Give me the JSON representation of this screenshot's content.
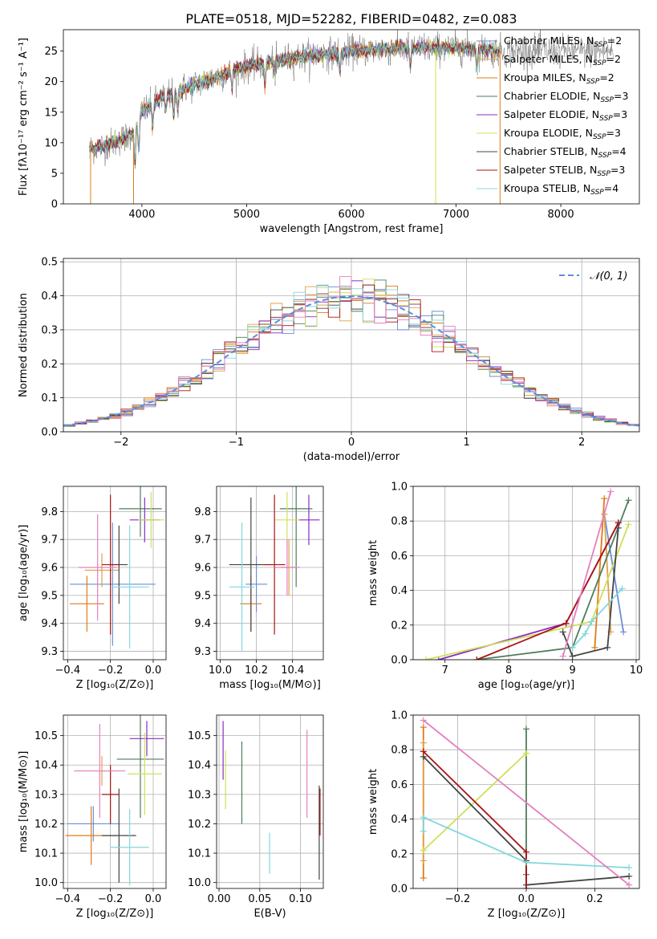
{
  "figure_title": "PLATE=0518, MJD=52282, FIBERID=0482, z=0.083",
  "colors": {
    "Chabrier MILES": "#6b8fd6",
    "Salpeter MILES": "#e0a04a",
    "Kroupa MILES": "#e07a18",
    "Chabrier ELODIE": "#4e7d5a",
    "Salpeter ELODIE": "#8a2cc0",
    "Kroupa ELODIE": "#d0df59",
    "Chabrier STELIB": "#444444",
    "Salpeter STELIB": "#a81414",
    "Kroupa STELIB": "#80d8de",
    "pink": "#e57fbf",
    "normal": "#5b8ee0"
  },
  "chart_data": [
    {
      "id": "spectrum",
      "type": "line",
      "title": "PLATE=0518, MJD=52282, FIBERID=0482, z=0.083",
      "xlabel": "wavelength [Angstrom, rest frame]",
      "ylabel": "Flux [fλ10⁻¹⁷ erg cm⁻² s⁻¹ A⁻¹]",
      "xlim": [
        3250,
        8750
      ],
      "ylim": [
        0,
        28.5
      ],
      "xticks": [
        4000,
        5000,
        6000,
        7000,
        8000
      ],
      "yticks": [
        0,
        5,
        10,
        15,
        20,
        25
      ],
      "grid": false,
      "legend_position": "upper right",
      "legend": [
        {
          "label": "Chabrier MILES, N",
          "sub": "SSP",
          "suffix": "=2"
        },
        {
          "label": "Salpeter MILES, N",
          "sub": "SSP",
          "suffix": "=2"
        },
        {
          "label": "Kroupa MILES, N",
          "sub": "SSP",
          "suffix": "=2"
        },
        {
          "label": "Chabrier ELODIE, N",
          "sub": "SSP",
          "suffix": "=3"
        },
        {
          "label": "Salpeter ELODIE, N",
          "sub": "SSP",
          "suffix": "=3"
        },
        {
          "label": "Kroupa ELODIE, N",
          "sub": "SSP",
          "suffix": "=3"
        },
        {
          "label": "Chabrier STELIB, N",
          "sub": "SSP",
          "suffix": "=4"
        },
        {
          "label": "Salpeter STELIB, N",
          "sub": "SSP",
          "suffix": "=3"
        },
        {
          "label": "Kroupa STELIB, N",
          "sub": "SSP",
          "suffix": "=4"
        }
      ],
      "continuum": [
        [
          3500,
          9.0
        ],
        [
          3700,
          9.8
        ],
        [
          3800,
          10.5
        ],
        [
          3900,
          11.5
        ],
        [
          4000,
          15.0
        ],
        [
          4200,
          17.5
        ],
        [
          4500,
          19.5
        ],
        [
          5000,
          22.5
        ],
        [
          5500,
          24.0
        ],
        [
          6000,
          25.0
        ],
        [
          6500,
          25.5
        ],
        [
          7000,
          25.5
        ],
        [
          7300,
          25.2
        ],
        [
          7400,
          25.0
        ]
      ],
      "absorption_lines": [
        [
          3934,
          6.0
        ],
        [
          3969,
          5.0
        ],
        [
          4102,
          3.5
        ],
        [
          4227,
          2.5
        ],
        [
          4304,
          4.0
        ],
        [
          4340,
          3.0
        ],
        [
          4861,
          3.0
        ],
        [
          5175,
          3.5
        ],
        [
          5270,
          2.0
        ],
        [
          5890,
          3.0
        ],
        [
          6563,
          3.0
        ],
        [
          7200,
          3.0
        ]
      ],
      "model_range": [
        3500,
        7420
      ],
      "data_range": [
        3500,
        8500
      ]
    },
    {
      "id": "residuals",
      "type": "line",
      "xlabel": "(data-model)/error",
      "ylabel": "Normed distribution",
      "xlim": [
        -2.5,
        2.5
      ],
      "ylim": [
        0,
        0.51
      ],
      "xticks": [
        -2,
        -1,
        0,
        1,
        2
      ],
      "yticks": [
        0.0,
        0.1,
        0.2,
        0.3,
        0.4,
        0.5
      ],
      "grid": true,
      "legend_position": "upper right",
      "legend": [
        "𝒩(0, 1)"
      ],
      "bin_width": 0.1,
      "normal_curve": {
        "mean": 0,
        "sigma": 1
      }
    },
    {
      "id": "age-vs-Z",
      "type": "scatter",
      "xlabel": "Z [log₁₀(Z/Z⊙)]",
      "ylabel": "age  [log₁₀(age/yr)]",
      "xlim": [
        -0.42,
        0.06
      ],
      "ylim": [
        9.27,
        9.89
      ],
      "xticks": [
        -0.4,
        -0.2,
        0.0
      ],
      "yticks": [
        9.3,
        9.4,
        9.5,
        9.6,
        9.7,
        9.8
      ],
      "grid": true,
      "errorbars": [
        {
          "series": "Chabrier MILES",
          "x": -0.19,
          "xerr": 0.2,
          "y": 9.54,
          "yerr": 0.22
        },
        {
          "series": "Kroupa MILES",
          "x": -0.31,
          "xerr": 0.08,
          "y": 9.47,
          "yerr": 0.1
        },
        {
          "series": "Salpeter MILES",
          "x": -0.24,
          "xerr": 0.08,
          "y": 9.59,
          "yerr": 0.06
        },
        {
          "series": "Chabrier ELODIE",
          "x": -0.06,
          "xerr": 0.1,
          "y": 9.81,
          "yerr": 0.1
        },
        {
          "series": "Salpeter ELODIE",
          "x": -0.04,
          "xerr": 0.07,
          "y": 9.77,
          "yerr": 0.08
        },
        {
          "series": "Kroupa ELODIE",
          "x": -0.01,
          "xerr": 0.06,
          "y": 9.77,
          "yerr": 0.1
        },
        {
          "series": "Chabrier STELIB",
          "x": -0.16,
          "xerr": 0.04,
          "y": 9.61,
          "yerr": 0.14
        },
        {
          "series": "Salpeter STELIB",
          "x": -0.2,
          "xerr": 0.04,
          "y": 9.61,
          "yerr": 0.25
        },
        {
          "series": "Kroupa STELIB",
          "x": -0.11,
          "xerr": 0.09,
          "y": 9.53,
          "yerr": 0.22
        },
        {
          "series": "pink",
          "x": -0.26,
          "xerr": 0.09,
          "y": 9.6,
          "yerr": 0.19
        }
      ]
    },
    {
      "id": "age-vs-mass",
      "type": "scatter",
      "xlabel": "mass [log₁₀(M/M⊙)]",
      "ylabel": "",
      "xlim": [
        9.98,
        10.57
      ],
      "ylim": [
        9.27,
        9.89
      ],
      "xticks": [
        10.0,
        10.2,
        10.4
      ],
      "yticks": [
        9.3,
        9.4,
        9.5,
        9.6,
        9.7,
        9.8
      ],
      "grid": true,
      "errorbars": [
        {
          "series": "Chabrier MILES",
          "x": 10.2,
          "xerr": 0.06,
          "y": 9.54,
          "yerr": 0.1
        },
        {
          "series": "Kroupa MILES",
          "x": 10.17,
          "xerr": 0.06,
          "y": 9.47,
          "yerr": 0.1
        },
        {
          "series": "Salpeter MILES",
          "x": 10.38,
          "xerr": 0.04,
          "y": 9.6,
          "yerr": 0.1
        },
        {
          "series": "Chabrier ELODIE",
          "x": 10.42,
          "xerr": 0.09,
          "y": 9.81,
          "yerr": 0.28
        },
        {
          "series": "Salpeter ELODIE",
          "x": 10.49,
          "xerr": 0.06,
          "y": 9.77,
          "yerr": 0.09
        },
        {
          "series": "Kroupa ELODIE",
          "x": 10.37,
          "xerr": 0.07,
          "y": 9.77,
          "yerr": 0.1
        },
        {
          "series": "Chabrier STELIB",
          "x": 10.17,
          "xerr": 0.12,
          "y": 9.61,
          "yerr": 0.24
        },
        {
          "series": "Salpeter STELIB",
          "x": 10.3,
          "xerr": 0.06,
          "y": 9.61,
          "yerr": 0.25
        },
        {
          "series": "Kroupa STELIB",
          "x": 10.12,
          "xerr": 0.07,
          "y": 9.53,
          "yerr": 0.23
        },
        {
          "series": "pink",
          "x": 10.37,
          "xerr": 0.07,
          "y": 9.6,
          "yerr": 0.1
        }
      ]
    },
    {
      "id": "mass-weight-vs-age",
      "type": "line",
      "xlabel": "age  [log₁₀(age/yr)]",
      "ylabel": "mass weight",
      "xlim": [
        6.5,
        10.05
      ],
      "ylim": [
        0,
        1.0
      ],
      "xticks": [
        7,
        8,
        9,
        10
      ],
      "yticks": [
        0.0,
        0.2,
        0.4,
        0.6,
        0.8,
        1.0
      ],
      "grid": true,
      "series": [
        {
          "name": "Chabrier MILES",
          "x": [
            9.5,
            9.8
          ],
          "y": [
            0.84,
            0.16
          ]
        },
        {
          "name": "Kroupa MILES",
          "x": [
            9.35,
            9.5
          ],
          "y": [
            0.07,
            0.93
          ]
        },
        {
          "name": "Salpeter MILES",
          "x": [
            9.5,
            9.6
          ],
          "y": [
            0.84,
            0.16
          ]
        },
        {
          "name": "Chabrier ELODIE",
          "x": [
            7.5,
            9.0,
            9.88
          ],
          "y": [
            0.0,
            0.07,
            0.92
          ]
        },
        {
          "name": "Salpeter ELODIE",
          "x": [
            6.9,
            8.9,
            9.72
          ],
          "y": [
            0.0,
            0.21,
            0.79
          ]
        },
        {
          "name": "Kroupa ELODIE",
          "x": [
            6.7,
            9.3,
            9.88
          ],
          "y": [
            0.0,
            0.22,
            0.78
          ]
        },
        {
          "name": "Chabrier STELIB",
          "x": [
            8.85,
            9.0,
            9.55,
            9.72
          ],
          "y": [
            0.16,
            0.02,
            0.07,
            0.76
          ]
        },
        {
          "name": "Salpeter STELIB",
          "x": [
            7.5,
            8.9,
            9.72
          ],
          "y": [
            0.0,
            0.21,
            0.79
          ]
        },
        {
          "name": "Kroupa STELIB",
          "x": [
            9.0,
            9.2,
            9.3,
            9.78
          ],
          "y": [
            0.07,
            0.15,
            0.22,
            0.41
          ]
        },
        {
          "name": "pink",
          "x": [
            8.85,
            9.6
          ],
          "y": [
            0.02,
            0.97
          ]
        }
      ]
    },
    {
      "id": "mass-vs-Z",
      "type": "scatter",
      "xlabel": "Z [log₁₀(Z/Z⊙)]",
      "ylabel": "mass [log₁₀(M/M⊙)]",
      "xlim": [
        -0.42,
        0.06
      ],
      "ylim": [
        9.98,
        10.57
      ],
      "xticks": [
        -0.4,
        -0.2,
        0.0
      ],
      "yticks": [
        10.0,
        10.1,
        10.2,
        10.3,
        10.4,
        10.5
      ],
      "grid": true,
      "errorbars": [
        {
          "series": "Chabrier MILES",
          "x": -0.28,
          "xerr": 0.12,
          "y": 10.2,
          "yerr": 0.06
        },
        {
          "series": "Kroupa MILES",
          "x": -0.29,
          "xerr": 0.12,
          "y": 10.16,
          "yerr": 0.1
        },
        {
          "series": "Salpeter MILES",
          "x": -0.24,
          "xerr": 0.04,
          "y": 10.38,
          "yerr": 0.05
        },
        {
          "series": "Chabrier ELODIE",
          "x": -0.06,
          "xerr": 0.11,
          "y": 10.42,
          "yerr": 0.2
        },
        {
          "series": "Salpeter ELODIE",
          "x": -0.03,
          "xerr": 0.08,
          "y": 10.49,
          "yerr": 0.06
        },
        {
          "series": "Kroupa ELODIE",
          "x": -0.04,
          "xerr": 0.08,
          "y": 10.37,
          "yerr": 0.14
        },
        {
          "series": "Chabrier STELIB",
          "x": -0.16,
          "xerr": 0.08,
          "y": 10.16,
          "yerr": 0.16
        },
        {
          "series": "Salpeter STELIB",
          "x": -0.2,
          "xerr": 0.04,
          "y": 10.3,
          "yerr": 0.1
        },
        {
          "series": "Kroupa STELIB",
          "x": -0.11,
          "xerr": 0.09,
          "y": 10.12,
          "yerr": 0.13
        },
        {
          "series": "pink",
          "x": -0.25,
          "xerr": 0.12,
          "y": 10.38,
          "yerr": 0.16
        }
      ]
    },
    {
      "id": "mass-vs-ebv",
      "type": "scatter",
      "xlabel": "E(B-V)",
      "ylabel": "",
      "xlim": [
        -0.003,
        0.128
      ],
      "ylim": [
        9.98,
        10.57
      ],
      "xticks": [
        0.0,
        0.05,
        0.1
      ],
      "yticks": [
        10.0,
        10.1,
        10.2,
        10.3,
        10.4,
        10.5
      ],
      "grid": true,
      "errorbars": [
        {
          "series": "Chabrier MILES",
          "x": 0.0,
          "xerr": 0,
          "y": 10.2,
          "yerr": 0
        },
        {
          "series": "Salpeter ELODIE",
          "x": 0.005,
          "xerr": 0,
          "y": 10.45,
          "yerr": 0.1
        },
        {
          "series": "Kroupa ELODIE",
          "x": 0.008,
          "xerr": 0,
          "y": 10.35,
          "yerr": 0.1
        },
        {
          "series": "Chabrier ELODIE",
          "x": 0.028,
          "xerr": 0,
          "y": 10.34,
          "yerr": 0.14
        },
        {
          "series": "Kroupa STELIB",
          "x": 0.062,
          "xerr": 0,
          "y": 10.1,
          "yerr": 0.07
        },
        {
          "series": "pink",
          "x": 0.108,
          "xerr": 0,
          "y": 10.37,
          "yerr": 0.15
        },
        {
          "series": "Chabrier STELIB",
          "x": 0.123,
          "xerr": 0,
          "y": 10.17,
          "yerr": 0.16
        },
        {
          "series": "Salpeter STELIB",
          "x": 0.124,
          "xerr": 0,
          "y": 10.24,
          "yerr": 0.08
        }
      ]
    },
    {
      "id": "mass-weight-vs-Z",
      "type": "line",
      "xlabel": "Z [log₁₀(Z/Z⊙)]",
      "ylabel": "mass weight",
      "xlim": [
        -0.33,
        0.33
      ],
      "ylim": [
        0,
        1.0
      ],
      "xticks": [
        -0.2,
        0.0,
        0.2
      ],
      "yticks": [
        0.0,
        0.2,
        0.4,
        0.6,
        0.8,
        1.0
      ],
      "grid": true,
      "series": [
        {
          "name": "Kroupa MILES",
          "x": [
            -0.3,
            -0.3
          ],
          "y": [
            0.06,
            0.93
          ]
        },
        {
          "name": "Salpeter MILES",
          "x": [
            -0.3,
            -0.3
          ],
          "y": [
            0.16,
            0.84
          ]
        },
        {
          "name": "Chabrier ELODIE",
          "x": [
            0.0,
            0.0
          ],
          "y": [
            0.08,
            0.92
          ]
        },
        {
          "name": "Kroupa ELODIE",
          "x": [
            -0.3,
            0.0,
            -0.3,
            0.0
          ],
          "y": [
            0.22,
            0.78,
            0.22,
            0.78
          ]
        },
        {
          "name": "Chabrier STELIB",
          "x": [
            -0.3,
            0.0,
            0.0,
            0.3
          ],
          "y": [
            0.76,
            0.16,
            0.02,
            0.07
          ]
        },
        {
          "name": "Salpeter STELIB",
          "x": [
            -0.3,
            0.0,
            0.0
          ],
          "y": [
            0.79,
            0.21,
            0.0
          ]
        },
        {
          "name": "Kroupa STELIB",
          "x": [
            -0.3,
            -0.3,
            0.0,
            0.3
          ],
          "y": [
            0.33,
            0.41,
            0.15,
            0.12
          ]
        },
        {
          "name": "pink",
          "x": [
            -0.3,
            0.3
          ],
          "y": [
            0.97,
            0.02
          ]
        }
      ]
    }
  ]
}
